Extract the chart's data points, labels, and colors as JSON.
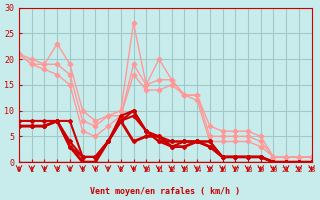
{
  "xlabel": "Vent moyen/en rafales ( km/h )",
  "bg_color": "#c8ecec",
  "grid_color": "#a0c8c8",
  "xlim": [
    0,
    23
  ],
  "ylim": [
    0,
    30
  ],
  "yticks": [
    0,
    5,
    10,
    15,
    20,
    25,
    30
  ],
  "xticks": [
    0,
    1,
    2,
    3,
    4,
    5,
    6,
    7,
    8,
    9,
    10,
    11,
    12,
    13,
    14,
    15,
    16,
    17,
    18,
    19,
    20,
    21,
    22,
    23
  ],
  "lines": [
    {
      "x": [
        0,
        1,
        2,
        3,
        4,
        5,
        6,
        7,
        8,
        9,
        10,
        11,
        12,
        13,
        14,
        15,
        16,
        17,
        18,
        19,
        20,
        21,
        22,
        23
      ],
      "y": [
        21,
        20,
        19,
        23,
        19,
        10,
        8,
        9,
        10,
        27,
        15,
        20,
        16,
        13,
        13,
        7,
        6,
        6,
        6,
        5,
        1,
        1,
        1,
        1
      ],
      "color": "#ff9999",
      "lw": 1.0,
      "marker": "P",
      "ms": 3,
      "zorder": 2
    },
    {
      "x": [
        0,
        1,
        2,
        3,
        4,
        5,
        6,
        7,
        8,
        9,
        10,
        11,
        12,
        13,
        14,
        15,
        16,
        17,
        18,
        19,
        20,
        21,
        22,
        23
      ],
      "y": [
        21,
        19,
        19,
        19,
        17,
        8,
        7,
        9,
        9,
        19,
        15,
        16,
        16,
        13,
        13,
        5,
        5,
        5,
        5,
        4,
        1,
        1,
        1,
        1
      ],
      "color": "#ff9999",
      "lw": 1.0,
      "marker": "P",
      "ms": 3,
      "zorder": 2
    },
    {
      "x": [
        0,
        1,
        2,
        3,
        4,
        5,
        6,
        7,
        8,
        9,
        10,
        11,
        12,
        13,
        14,
        15,
        16,
        17,
        18,
        19,
        20,
        21,
        22,
        23
      ],
      "y": [
        21,
        19,
        18,
        17,
        15,
        6,
        5,
        7,
        9,
        17,
        14,
        14,
        15,
        13,
        12,
        4,
        4,
        4,
        4,
        3,
        1,
        1,
        1,
        1
      ],
      "color": "#ff9999",
      "lw": 1.0,
      "marker": "P",
      "ms": 3,
      "zorder": 2
    },
    {
      "x": [
        0,
        1,
        2,
        3,
        4,
        5,
        6,
        7,
        8,
        9,
        10,
        11,
        12,
        13,
        14,
        15,
        16,
        17,
        18,
        19,
        20,
        21,
        22,
        23
      ],
      "y": [
        8,
        8,
        8,
        8,
        8,
        1,
        1,
        4,
        9,
        10,
        6,
        5,
        4,
        4,
        4,
        4,
        1,
        1,
        1,
        1,
        0,
        0,
        0,
        0
      ],
      "color": "#cc0000",
      "lw": 1.5,
      "marker": "D",
      "ms": 2,
      "zorder": 3
    },
    {
      "x": [
        0,
        1,
        2,
        3,
        4,
        5,
        6,
        7,
        8,
        9,
        10,
        11,
        12,
        13,
        14,
        15,
        16,
        17,
        18,
        19,
        20,
        21,
        22,
        23
      ],
      "y": [
        7,
        7,
        7,
        8,
        4,
        1,
        1,
        4,
        8,
        10,
        6,
        4,
        4,
        4,
        4,
        4,
        1,
        1,
        1,
        1,
        0,
        0,
        0,
        0
      ],
      "color": "#cc0000",
      "lw": 1.5,
      "marker": "D",
      "ms": 2,
      "zorder": 3
    },
    {
      "x": [
        0,
        1,
        2,
        3,
        4,
        5,
        6,
        7,
        8,
        9,
        10,
        11,
        12,
        13,
        14,
        15,
        16,
        17,
        18,
        19,
        20,
        21,
        22,
        23
      ],
      "y": [
        7,
        7,
        7,
        8,
        3,
        1,
        1,
        4,
        8,
        9,
        6,
        4,
        3,
        4,
        4,
        3,
        1,
        1,
        1,
        1,
        0,
        0,
        0,
        0
      ],
      "color": "#cc0000",
      "lw": 1.5,
      "marker": "D",
      "ms": 2,
      "zorder": 3
    },
    {
      "x": [
        0,
        1,
        2,
        3,
        4,
        5,
        6,
        7,
        8,
        9,
        10,
        11,
        12,
        13,
        14,
        15,
        16,
        17,
        18,
        19,
        20,
        21,
        22,
        23
      ],
      "y": [
        7,
        7,
        7,
        8,
        3,
        0,
        0,
        4,
        8,
        4,
        5,
        5,
        3,
        3,
        4,
        3,
        1,
        1,
        1,
        1,
        0,
        0,
        0,
        0
      ],
      "color": "#cc0000",
      "lw": 2.0,
      "marker": "D",
      "ms": 2,
      "zorder": 3
    }
  ],
  "arrow_color": "#cc0000",
  "tick_color": "#cc0000",
  "label_color": "#cc0000"
}
